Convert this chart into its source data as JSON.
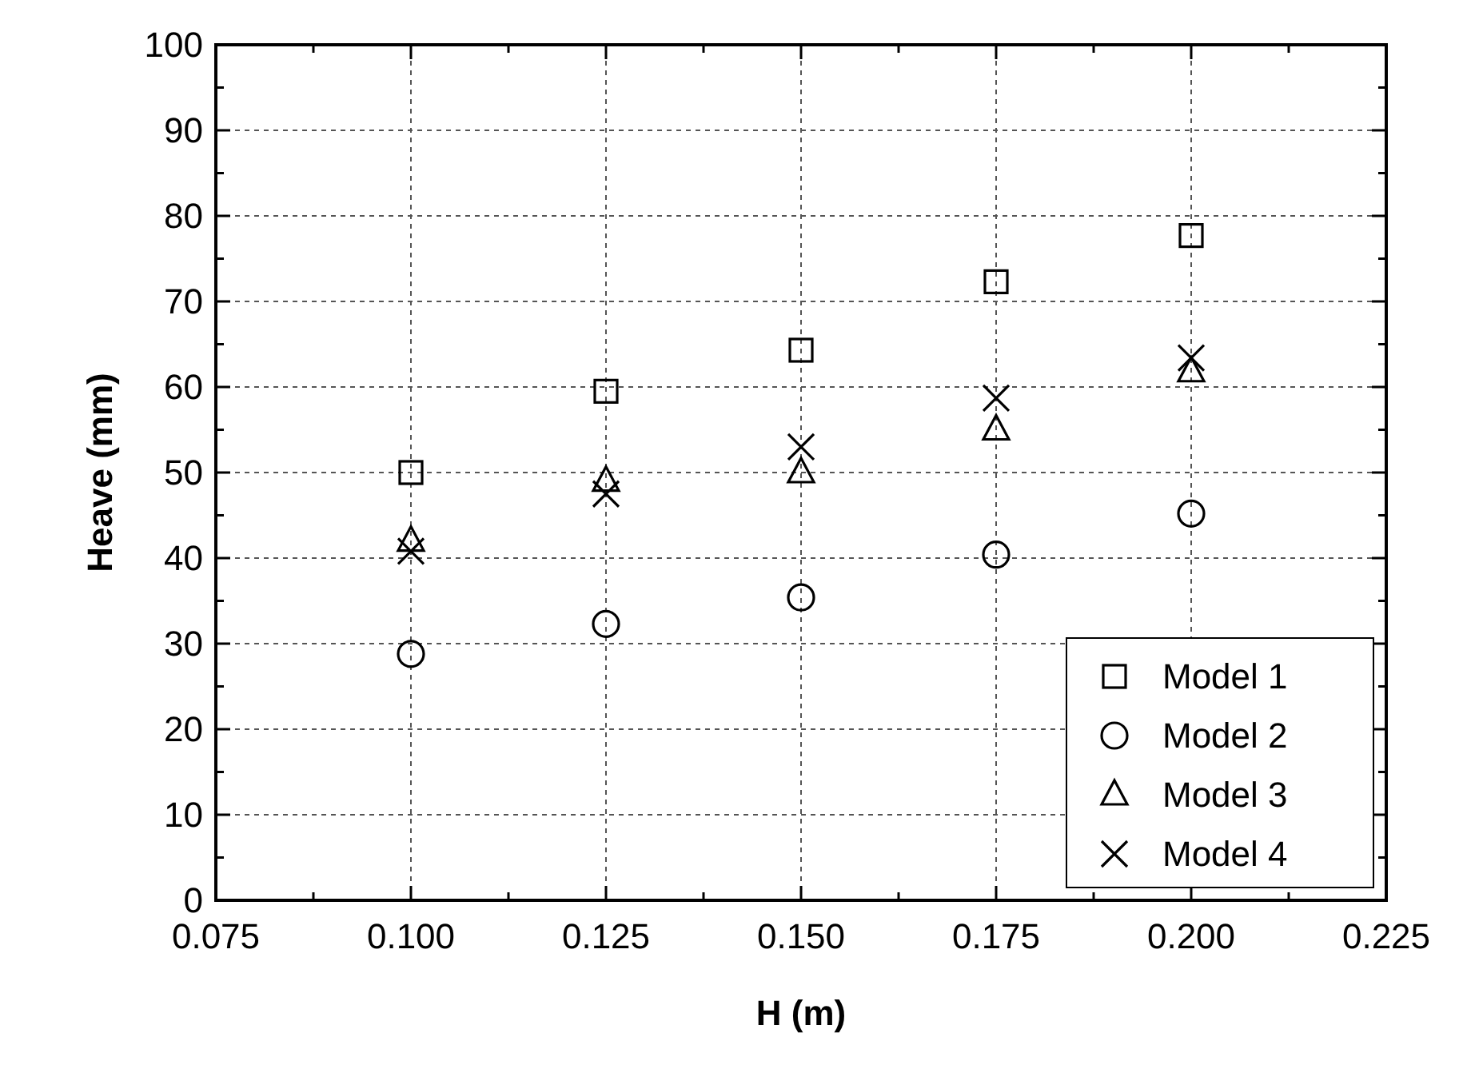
{
  "chart_data": {
    "type": "scatter",
    "xlabel": "H (m)",
    "ylabel": "Heave (mm)",
    "x": [
      0.1,
      0.125,
      0.15,
      0.175,
      0.2
    ],
    "xlim": [
      0.075,
      0.225
    ],
    "xticks": [
      {
        "value": 0.075,
        "label": "0.075"
      },
      {
        "value": 0.1,
        "label": "0.100"
      },
      {
        "value": 0.125,
        "label": "0.125"
      },
      {
        "value": 0.15,
        "label": "0.150"
      },
      {
        "value": 0.175,
        "label": "0.175"
      },
      {
        "value": 0.2,
        "label": "0.200"
      },
      {
        "value": 0.225,
        "label": "0.225"
      }
    ],
    "ylim": [
      0,
      100
    ],
    "yticks": [
      0,
      10,
      20,
      30,
      40,
      50,
      60,
      70,
      80,
      90,
      100
    ],
    "grid": true,
    "legend": "bottom right",
    "series": [
      {
        "name": "Model 1",
        "color": "#000000",
        "marker": "square",
        "values": [
          50,
          59.5,
          64.3,
          72.3,
          77.7
        ]
      },
      {
        "name": "Model 2",
        "color": "#000000",
        "marker": "circle",
        "values": [
          28.8,
          32.3,
          35.4,
          40.4,
          45.2
        ]
      },
      {
        "name": "Model 3",
        "color": "#000000",
        "marker": "triangle",
        "values": [
          42,
          49,
          50,
          55,
          61.8
        ]
      },
      {
        "name": "Model 4",
        "color": "#000000",
        "marker": "cross",
        "values": [
          40.8,
          47.5,
          53,
          58.7,
          63.4
        ]
      }
    ]
  }
}
